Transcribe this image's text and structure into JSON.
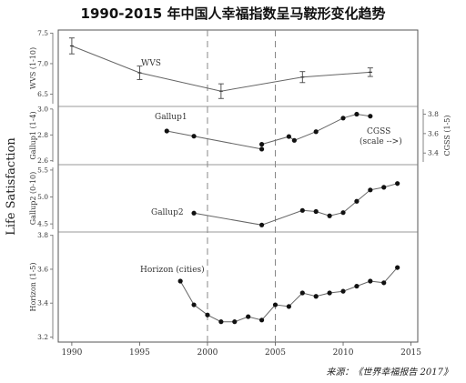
{
  "title": "1990-2015 年中国人幸福指数呈马鞍形变化趋势",
  "source": "来源：《世界幸福报告 2017》",
  "chart_data": {
    "type": "line",
    "ylabel": "Life Satisfaction",
    "x_ticks": [
      1990,
      1995,
      2000,
      2005,
      2010,
      2015
    ],
    "xlim": [
      1989,
      2015.5
    ],
    "reference_lines_x": [
      2000,
      2005
    ],
    "panels": [
      {
        "name": "WVS",
        "ylabel": "WVS (1-10)",
        "ylim": [
          6.3,
          7.55
        ],
        "y_ticks": [
          6.5,
          7.0,
          7.5
        ],
        "series": [
          {
            "name": "WVS",
            "style": "errorbar",
            "x": [
              1990,
              1995,
              2001,
              2007,
              2012
            ],
            "y": [
              7.29,
              6.85,
              6.55,
              6.78,
              6.86
            ],
            "err": [
              0.13,
              0.11,
              0.12,
              0.09,
              0.07
            ]
          }
        ]
      },
      {
        "name": "Gallup1",
        "ylabel": "Gallup1 (1-4)",
        "ylim": [
          2.57,
          3.02
        ],
        "y_ticks": [
          2.6,
          2.8,
          3.0
        ],
        "right_ylabel": "CGSS (1-5)",
        "right_ylim": [
          3.28,
          3.88
        ],
        "right_y_ticks": [
          3.4,
          3.6,
          3.8
        ],
        "series": [
          {
            "name": "Gallup1",
            "style": "dots",
            "x": [
              1997,
              1999,
              2004
            ],
            "y": [
              2.83,
              2.79,
              2.69
            ]
          },
          {
            "name": "CGSS",
            "label": "CGSS\n(scale -->)",
            "style": "dots",
            "axis": "right",
            "x": [
              2004,
              2006,
              2006.4,
              2008,
              2010,
              2011,
              2012
            ],
            "y": [
              3.49,
              3.57,
              3.53,
              3.62,
              3.76,
              3.8,
              3.78
            ]
          }
        ]
      },
      {
        "name": "Gallup2",
        "ylabel": "Gallup2 (0-10)",
        "ylim": [
          4.35,
          5.6
        ],
        "y_ticks": [
          4.5,
          5.0,
          5.5
        ],
        "series": [
          {
            "name": "Gallup2",
            "style": "dots",
            "x": [
              1999,
              2004,
              2007,
              2008,
              2009,
              2010,
              2011,
              2012,
              2013,
              2014
            ],
            "y": [
              4.7,
              4.48,
              4.75,
              4.73,
              4.65,
              4.71,
              4.92,
              5.13,
              5.18,
              5.25
            ]
          }
        ]
      },
      {
        "name": "Horizon (cities)",
        "ylabel": "Horizon (1-5)",
        "ylim": [
          3.17,
          3.82
        ],
        "y_ticks": [
          3.2,
          3.4,
          3.6,
          3.8
        ],
        "series": [
          {
            "name": "Horizon (cities)",
            "style": "dots",
            "x": [
              1998,
              1999,
              2000,
              2001,
              2002,
              2003,
              2004,
              2005,
              2006,
              2007,
              2008,
              2009,
              2010,
              2011,
              2012,
              2013,
              2014
            ],
            "y": [
              3.53,
              3.39,
              3.33,
              3.29,
              3.29,
              3.32,
              3.3,
              3.39,
              3.38,
              3.46,
              3.44,
              3.46,
              3.47,
              3.5,
              3.53,
              3.52,
              3.61
            ]
          }
        ]
      }
    ]
  }
}
